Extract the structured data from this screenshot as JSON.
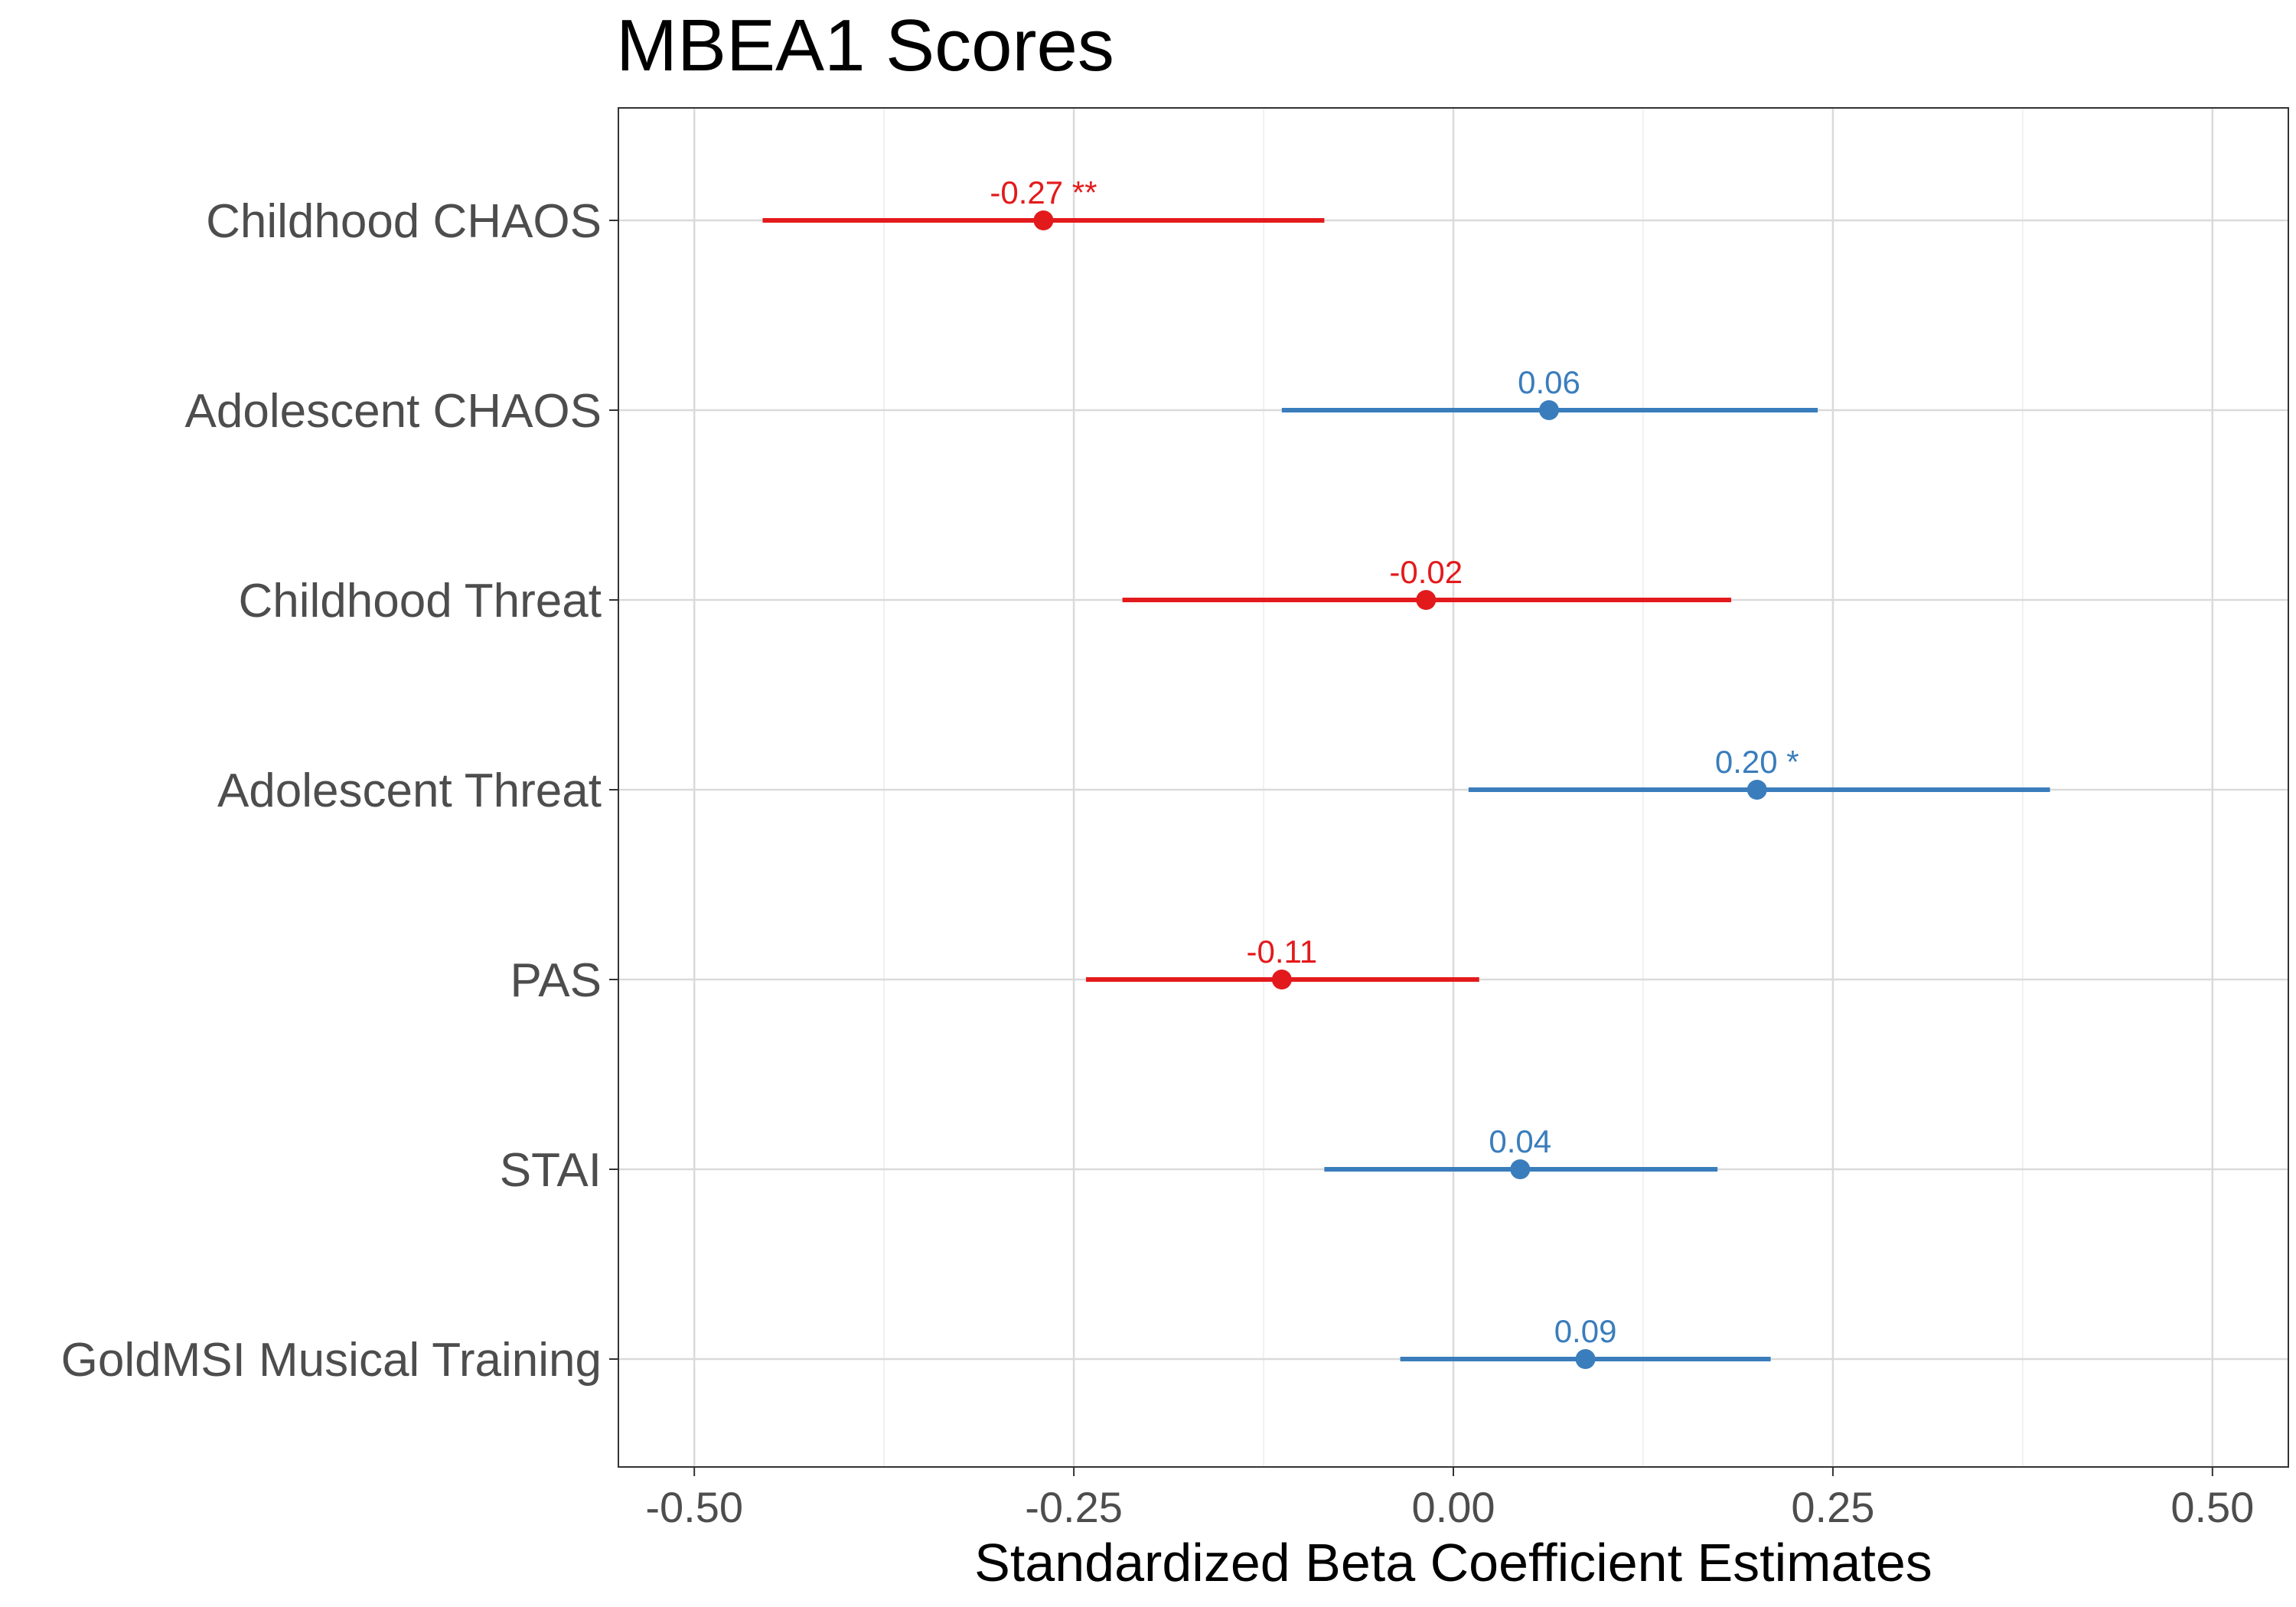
{
  "chart_data": {
    "type": "scatter",
    "title": "MBEA1 Scores",
    "xlabel": "Standardized Beta Coefficient Estimates",
    "ylabel": "",
    "xlim": [
      -0.55,
      0.55
    ],
    "xticks": [
      -0.5,
      -0.25,
      0.0,
      0.25,
      0.5
    ],
    "xtick_labels": [
      "-0.50",
      "-0.25",
      "0.00",
      "0.25",
      "0.50"
    ],
    "grid": true,
    "colors": {
      "negative": "#e31a1c",
      "positive": "#3a7dbc"
    },
    "points": [
      {
        "label": "Childhood CHAOS",
        "estimate": -0.27,
        "ci_low": -0.455,
        "ci_high": -0.085,
        "annotation": "-0.27 **",
        "sign": "negative"
      },
      {
        "label": "Adolescent CHAOS",
        "estimate": 0.063,
        "ci_low": -0.113,
        "ci_high": 0.24,
        "annotation": "0.06",
        "sign": "positive"
      },
      {
        "label": "Childhood Threat",
        "estimate": -0.018,
        "ci_low": -0.218,
        "ci_high": 0.183,
        "annotation": "-0.02",
        "sign": "negative"
      },
      {
        "label": "Adolescent Threat",
        "estimate": 0.2,
        "ci_low": 0.01,
        "ci_high": 0.393,
        "annotation": "0.20 *",
        "sign": "positive"
      },
      {
        "label": "PAS",
        "estimate": -0.113,
        "ci_low": -0.242,
        "ci_high": 0.017,
        "annotation": "-0.11",
        "sign": "negative"
      },
      {
        "label": "STAI",
        "estimate": 0.044,
        "ci_low": -0.085,
        "ci_high": 0.174,
        "annotation": "0.04",
        "sign": "positive"
      },
      {
        "label": "GoldMSI Musical Training",
        "estimate": 0.087,
        "ci_low": -0.035,
        "ci_high": 0.209,
        "annotation": "0.09",
        "sign": "positive"
      }
    ]
  }
}
